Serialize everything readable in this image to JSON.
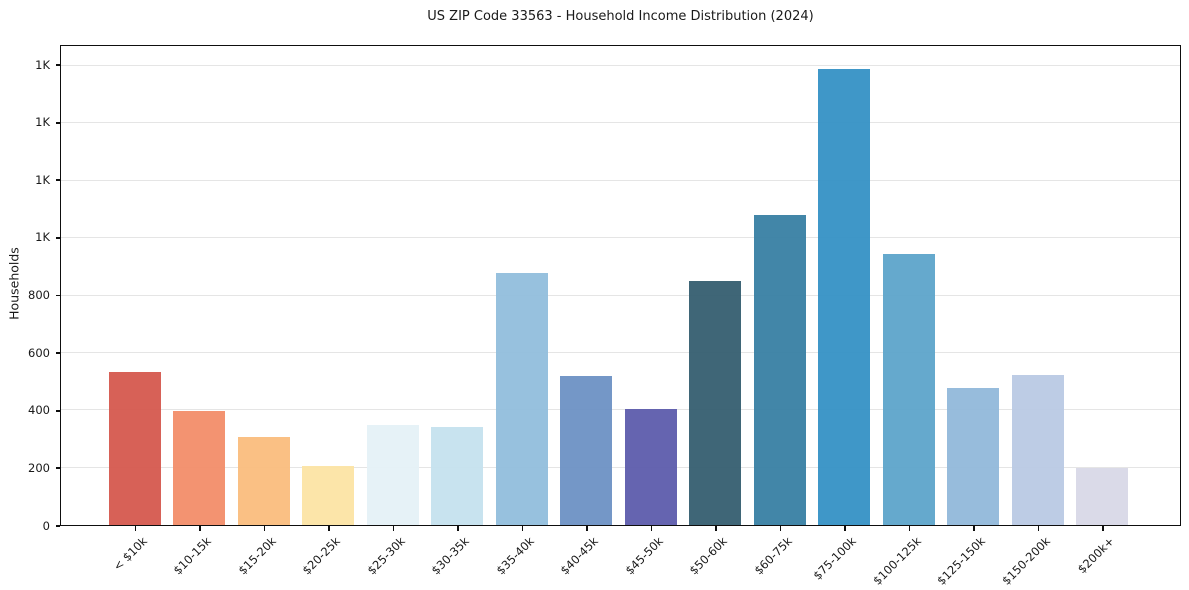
{
  "chart_data": {
    "type": "bar",
    "title": "US ZIP Code 33563 - Household Income Distribution (2024)",
    "xlabel": "",
    "ylabel": "Households",
    "categories": [
      "< $10k",
      "$10-15k",
      "$15-20k",
      "$20-25k",
      "$25-30k",
      "$30-35k",
      "$35-40k",
      "$40-45k",
      "$45-50k",
      "$50-60k",
      "$60-75k",
      "$75-100k",
      "$100-125k",
      "$125-150k",
      "$150-200k",
      "$200k+"
    ],
    "values": [
      535,
      398,
      306,
      205,
      347,
      341,
      878,
      518,
      403,
      850,
      1081,
      1591,
      944,
      479,
      523,
      198
    ],
    "bar_colors": [
      "#d4574c",
      "#f28c68",
      "#fabc7c",
      "#fce3a4",
      "#e4f1f7",
      "#c5e1ee",
      "#90bddc",
      "#6b91c3",
      "#5b5aab",
      "#335c6e",
      "#367ea3",
      "#3390c5",
      "#5ba4ca",
      "#90b8da",
      "#b9c9e3",
      "#d8d8e7"
    ],
    "ylim": [
      0,
      1670
    ],
    "yticks": [
      {
        "value": 0,
        "label": "0"
      },
      {
        "value": 200,
        "label": "200"
      },
      {
        "value": 400,
        "label": "400"
      },
      {
        "value": 600,
        "label": "600"
      },
      {
        "value": 800,
        "label": "800"
      },
      {
        "value": 1000,
        "label": "1K"
      },
      {
        "value": 1200,
        "label": "1K"
      },
      {
        "value": 1400,
        "label": "1K"
      },
      {
        "value": 1600,
        "label": "1K"
      }
    ],
    "grid": "horizontal",
    "legend": "none",
    "colors": {
      "grid": "#e5e5e5",
      "spine": "#0e0e0e",
      "text": "#1a1a1a",
      "background": "#ffffff"
    }
  }
}
